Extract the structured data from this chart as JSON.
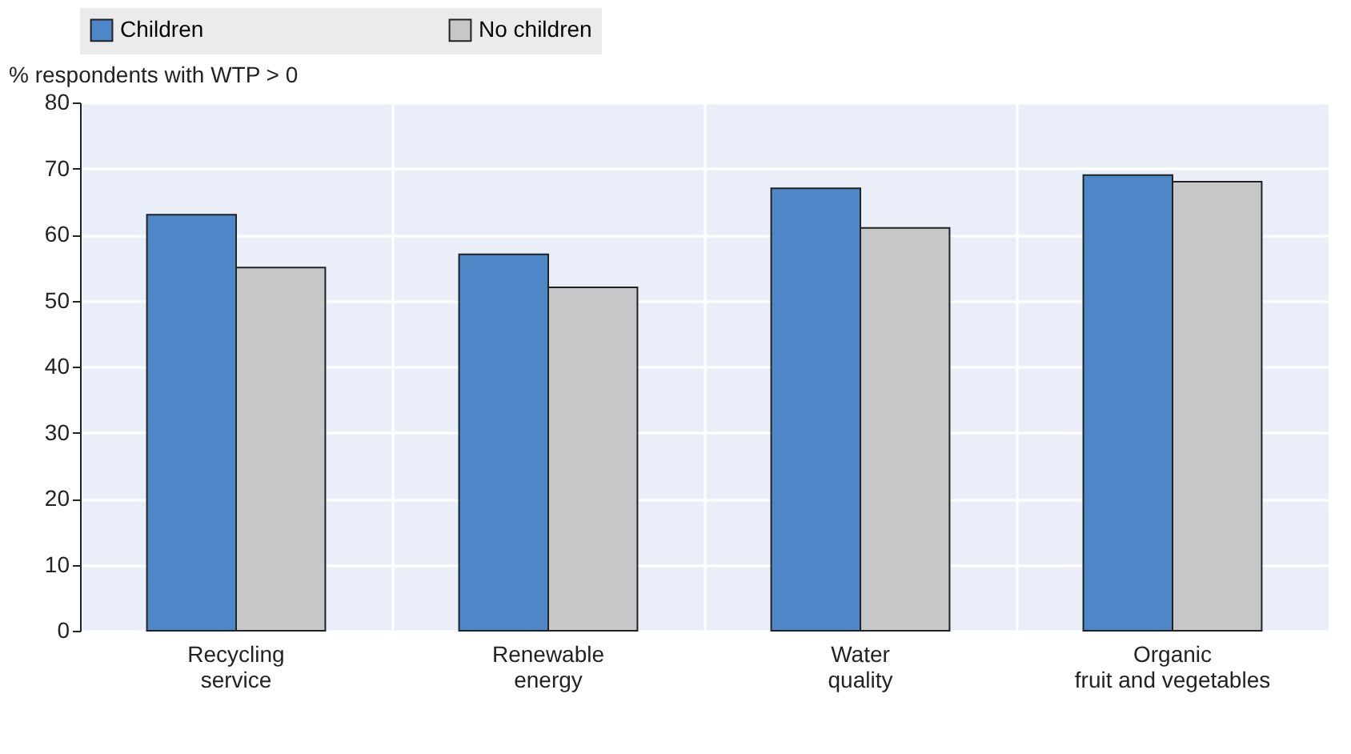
{
  "chart_data": {
    "type": "bar",
    "ylabel": "% respondents with WTP > 0",
    "categories": [
      "Recycling\nservice",
      "Renewable\nenergy",
      "Water\nquality",
      "Organic\nfruit and vegetables"
    ],
    "series": [
      {
        "name": "Children",
        "color": "#4e87c7",
        "values": [
          63,
          57,
          67,
          69
        ]
      },
      {
        "name": "No children",
        "color": "#c6c7c9",
        "values": [
          55,
          52,
          61,
          68
        ]
      }
    ],
    "ylim": [
      0,
      80
    ],
    "yticks": [
      0,
      10,
      20,
      30,
      40,
      50,
      60,
      70,
      80
    ],
    "grid": true,
    "legend": "top"
  }
}
